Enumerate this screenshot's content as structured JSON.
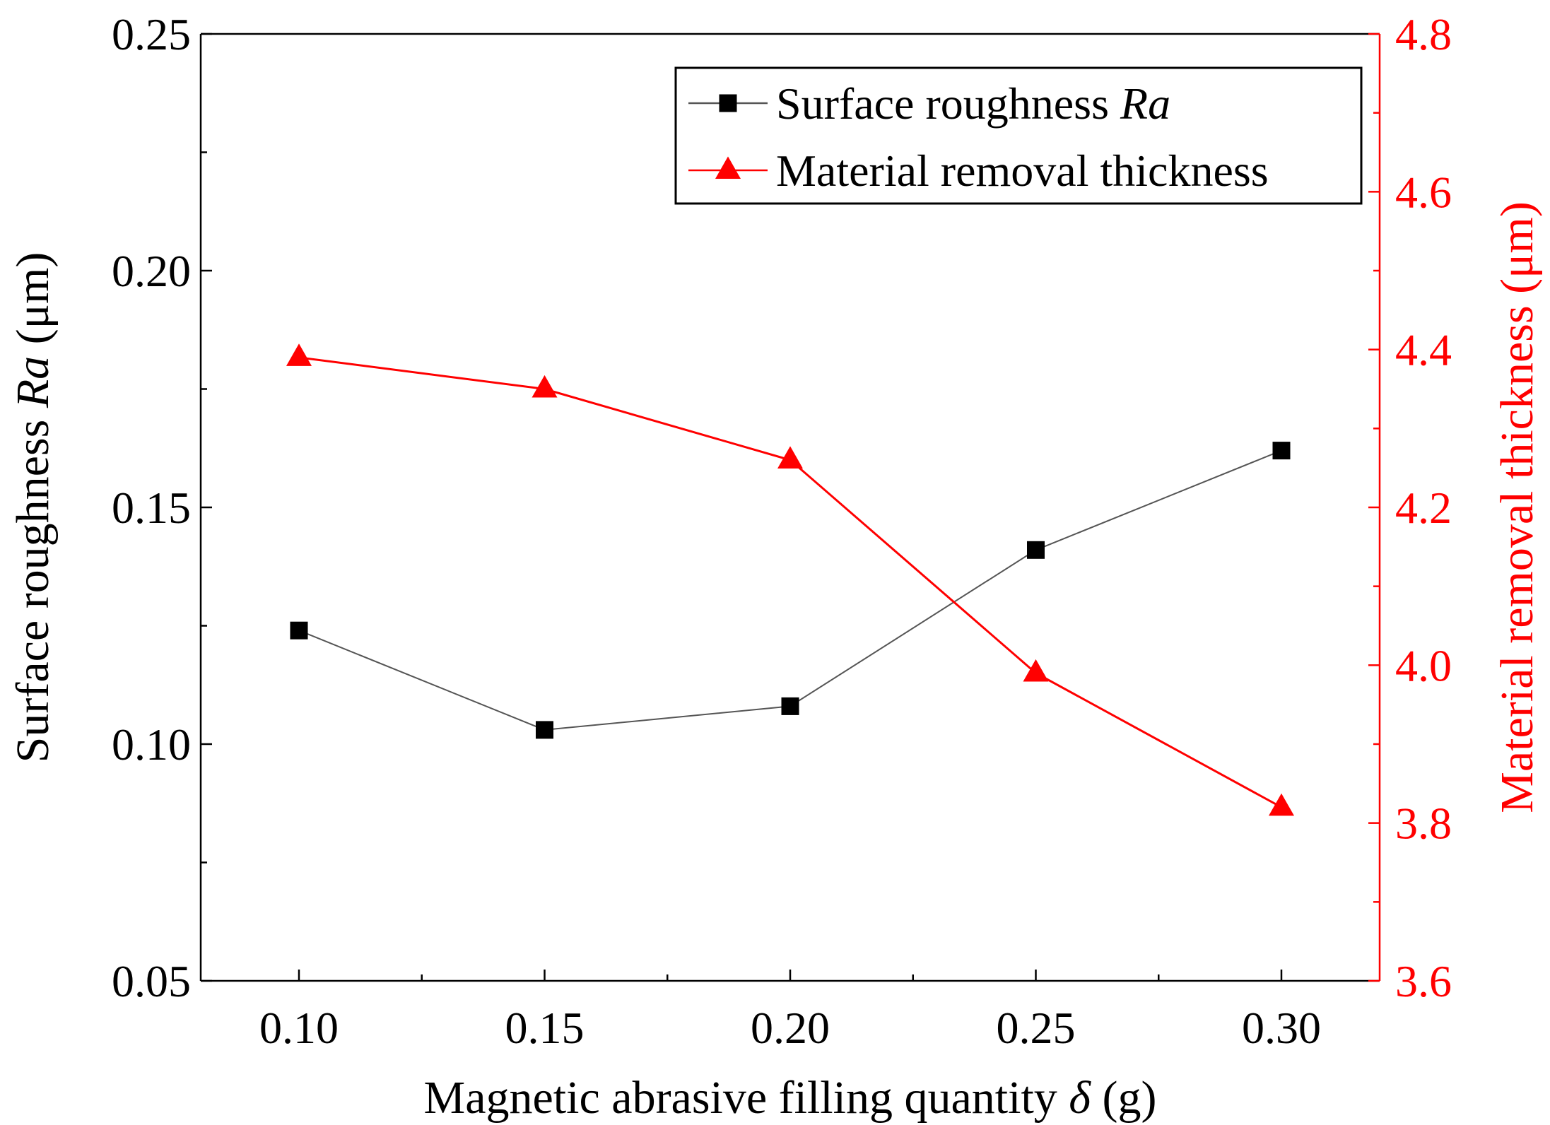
{
  "chart_data": {
    "type": "line",
    "title": "",
    "xlabel": "Magnetic abrasive filling quantity δ (g)",
    "xlabel_parts": {
      "prefix": "Magnetic abrasive filling quantity ",
      "symbol": "δ",
      "suffix": " (g)"
    },
    "ylabel": "Surface roughness Ra (μm)",
    "ylabel_parts": {
      "prefix": "Surface roughness ",
      "symbol": "Ra",
      "suffix": " (μm)"
    },
    "y2label": "Material removal thickness (μm)",
    "x": [
      0.1,
      0.15,
      0.2,
      0.25,
      0.3
    ],
    "xlim": [
      0.08,
      0.32
    ],
    "ylim": [
      0.05,
      0.25
    ],
    "y2lim": [
      3.6,
      4.8
    ],
    "xticks": [
      "0.10",
      "0.15",
      "0.20",
      "0.25",
      "0.30"
    ],
    "xtick_values": [
      0.1,
      0.15,
      0.2,
      0.25,
      0.3
    ],
    "yticks": [
      "0.05",
      "0.10",
      "0.15",
      "0.20",
      "0.25"
    ],
    "ytick_values": [
      0.05,
      0.1,
      0.15,
      0.2,
      0.25
    ],
    "y2ticks": [
      "3.6",
      "3.8",
      "4.0",
      "4.2",
      "4.4",
      "4.6",
      "4.8"
    ],
    "y2tick_values": [
      3.6,
      3.8,
      4.0,
      4.2,
      4.4,
      4.6,
      4.8
    ],
    "series": [
      {
        "name": "Surface roughness Ra",
        "name_parts": {
          "prefix": "Surface roughness ",
          "symbol": "Ra"
        },
        "axis": "left",
        "marker": "square",
        "color": "#000000",
        "line_color": "#555555",
        "values": [
          0.124,
          0.103,
          0.108,
          0.141,
          0.162
        ]
      },
      {
        "name": "Material removal thickness",
        "axis": "right",
        "marker": "triangle",
        "color": "#ff0000",
        "line_color": "#ff0000",
        "values": [
          4.39,
          4.35,
          4.26,
          3.99,
          3.82
        ]
      }
    ],
    "legend_position": "top-right",
    "grid": false
  }
}
